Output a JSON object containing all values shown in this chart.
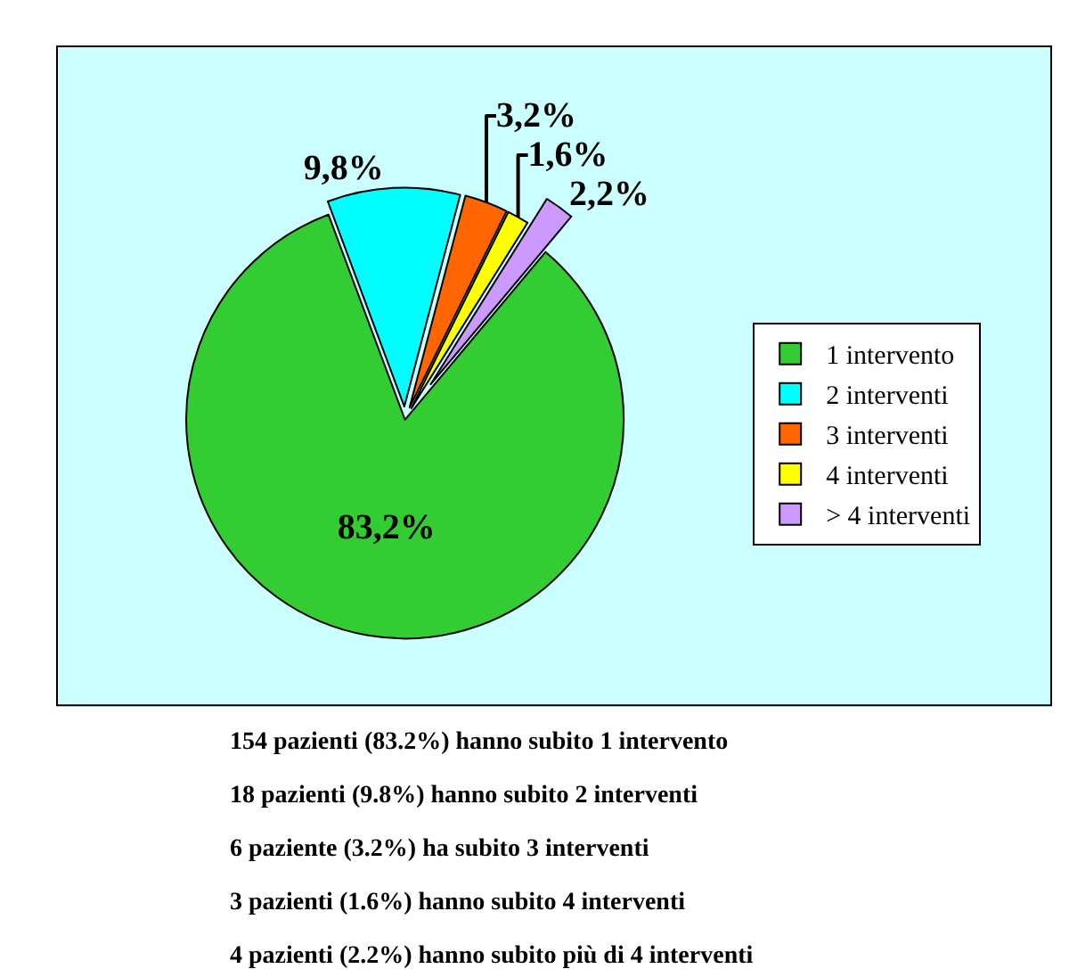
{
  "chart_data": {
    "type": "pie",
    "categories": [
      "1 intervento",
      "2 interventi",
      "3 interventi",
      "4 interventi",
      "> 4 interventi"
    ],
    "values": [
      83.2,
      9.8,
      3.2,
      1.6,
      2.2
    ],
    "colors": [
      "#33cc33",
      "#00ffff",
      "#ff6600",
      "#ffff00",
      "#cc99ff"
    ],
    "value_labels": [
      "83,2%",
      "9,8%",
      "3,2%",
      "1,6%",
      "2,2%"
    ],
    "legend": "right",
    "annotations": [
      "154 pazienti (83.2%) hanno subito 1 intervento",
      "18 pazienti (9.8%) hanno subito 2 interventi",
      "6 paziente (3.2%) ha subito 3 interventi",
      "3 pazienti (1.6%) hanno subito 4 interventi",
      "4 pazienti (2.2%) hanno subito più di 4 interventi"
    ]
  }
}
